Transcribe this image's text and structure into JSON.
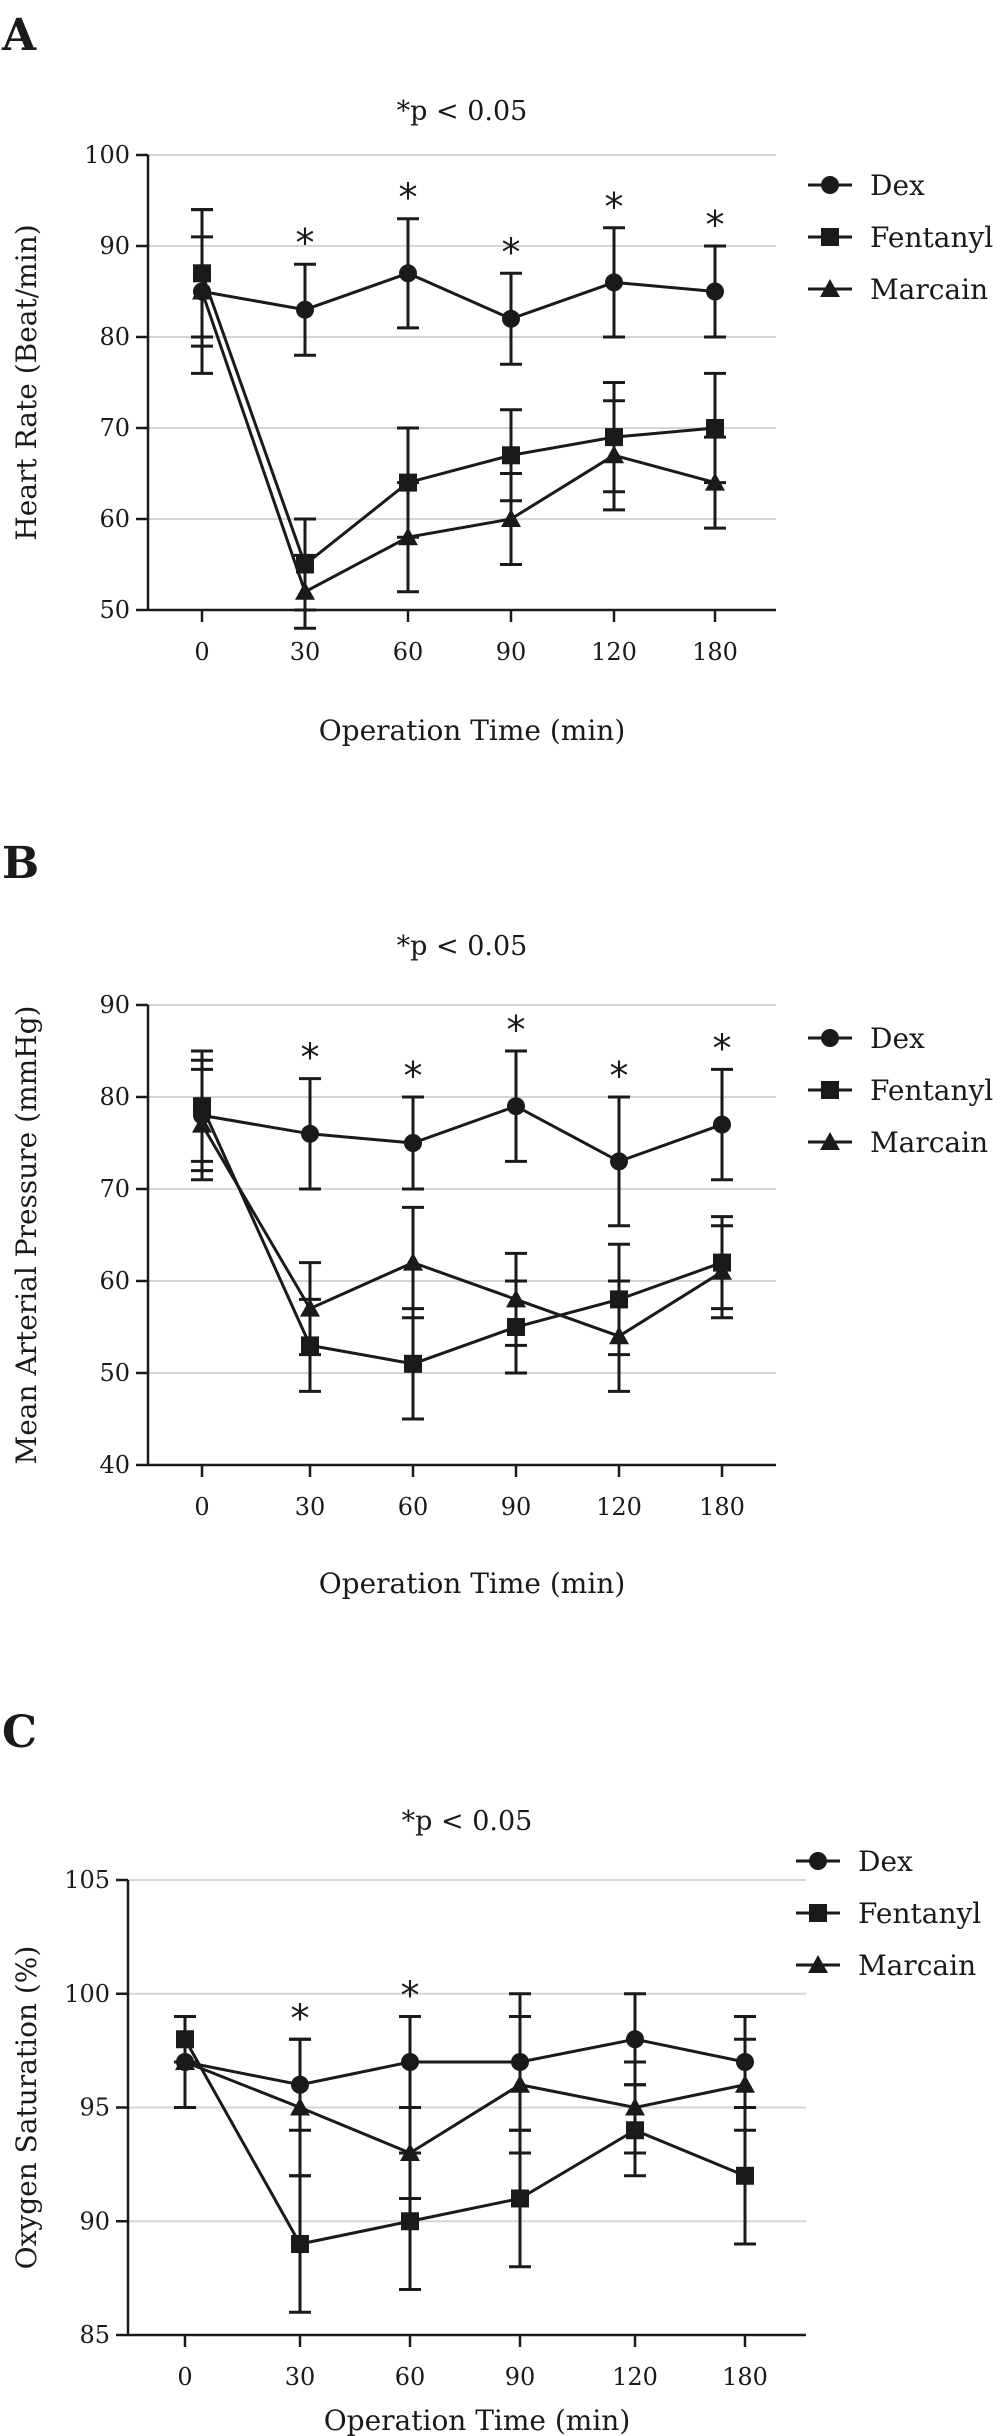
{
  "chart_data": [
    {
      "panel": "A",
      "type": "line",
      "note": "*p < 0.05",
      "xlabel": "Operation Time (min)",
      "ylabel": "Heart Rate (Beat/min)",
      "categories": [
        "0",
        "30",
        "60",
        "90",
        "120",
        "180"
      ],
      "ylim": [
        50,
        100
      ],
      "yticks": [
        50,
        60,
        70,
        80,
        90,
        100
      ],
      "grid": true,
      "legend_position": "top-right",
      "significant": [
        false,
        true,
        true,
        true,
        true,
        true
      ],
      "series": [
        {
          "name": "Dex",
          "marker": "circle",
          "values": [
            85,
            83,
            87,
            82,
            86,
            85
          ],
          "errors": [
            6,
            5,
            6,
            5,
            6,
            5
          ]
        },
        {
          "name": "Fentanyl",
          "marker": "square",
          "values": [
            87,
            55,
            64,
            67,
            69,
            70
          ],
          "errors": [
            7,
            5,
            6,
            5,
            6,
            6
          ]
        },
        {
          "name": "Marcain",
          "marker": "triangle",
          "values": [
            85,
            52,
            58,
            60,
            67,
            64
          ],
          "errors": [
            9,
            4,
            6,
            5,
            6,
            5
          ]
        }
      ]
    },
    {
      "panel": "B",
      "type": "line",
      "note": "*p < 0.05",
      "xlabel": "Operation Time (min)",
      "ylabel": "Mean Arterial Pressure (mmHg)",
      "categories": [
        "0",
        "30",
        "60",
        "90",
        "120",
        "180"
      ],
      "ylim": [
        40,
        90
      ],
      "yticks": [
        40,
        50,
        60,
        70,
        80,
        90
      ],
      "grid": true,
      "legend_position": "top-right",
      "significant": [
        false,
        true,
        true,
        true,
        true,
        true
      ],
      "series": [
        {
          "name": "Dex",
          "marker": "circle",
          "values": [
            78,
            76,
            75,
            79,
            73,
            77
          ],
          "errors": [
            6,
            6,
            5,
            6,
            7,
            6
          ]
        },
        {
          "name": "Fentanyl",
          "marker": "square",
          "values": [
            79,
            53,
            51,
            55,
            58,
            62
          ],
          "errors": [
            6,
            5,
            6,
            5,
            6,
            5
          ]
        },
        {
          "name": "Marcain",
          "marker": "triangle",
          "values": [
            77,
            57,
            62,
            58,
            54,
            61
          ],
          "errors": [
            6,
            5,
            6,
            5,
            6,
            5
          ]
        }
      ]
    },
    {
      "panel": "C",
      "type": "line",
      "note": "*p < 0.05",
      "xlabel": "Operation Time (min)",
      "ylabel": "Oxygen Saturation (%)",
      "categories": [
        "0",
        "30",
        "60",
        "90",
        "120",
        "180"
      ],
      "ylim": [
        85,
        105
      ],
      "yticks": [
        85,
        90,
        95,
        100,
        105
      ],
      "grid": true,
      "legend_position": "top-right",
      "significant": [
        false,
        true,
        true,
        false,
        false,
        false
      ],
      "series": [
        {
          "name": "Dex",
          "marker": "circle",
          "values": [
            97,
            96,
            97,
            97,
            98,
            97
          ],
          "errors": [
            2,
            2,
            2,
            3,
            2,
            2
          ]
        },
        {
          "name": "Fentanyl",
          "marker": "square",
          "values": [
            98,
            89,
            90,
            91,
            94,
            92
          ],
          "errors": [
            1,
            3,
            3,
            3,
            2,
            3
          ]
        },
        {
          "name": "Marcain",
          "marker": "triangle",
          "values": [
            97,
            95,
            93,
            96,
            95,
            96
          ],
          "errors": [
            2,
            3,
            2,
            3,
            2,
            2
          ]
        }
      ]
    }
  ]
}
